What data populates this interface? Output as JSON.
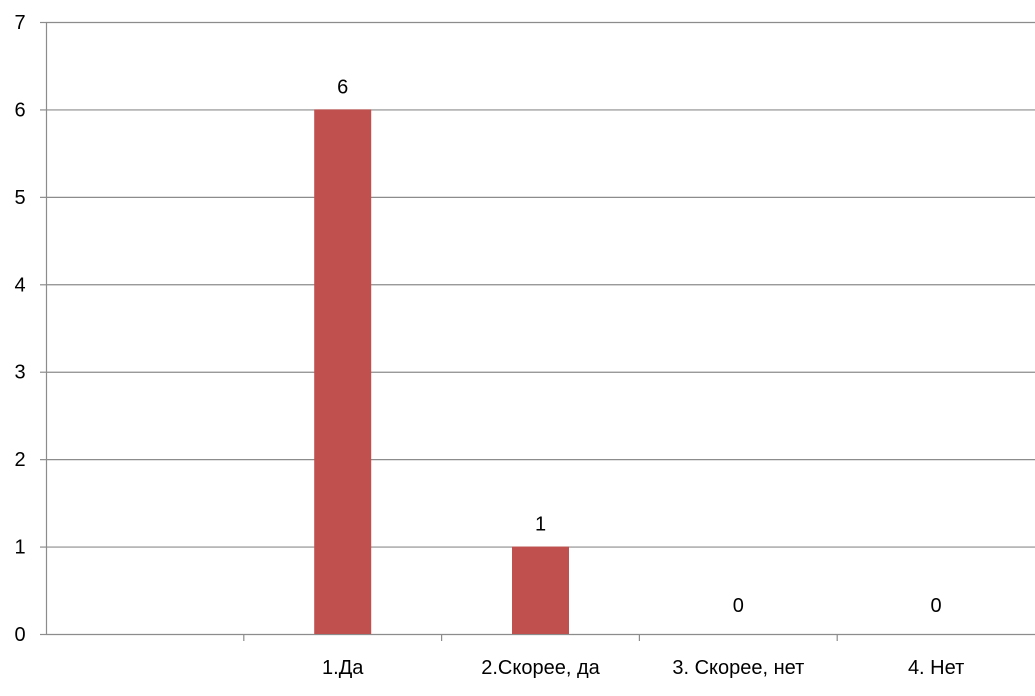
{
  "chart_data": {
    "type": "bar",
    "categories": [
      "",
      "1.Да",
      "2.Скорее, да",
      "3. Скорее, нет",
      "4. Нет"
    ],
    "values": [
      null,
      6,
      1,
      0,
      0
    ],
    "data_labels": [
      "",
      "6",
      "1",
      "0",
      "0"
    ],
    "ylim": [
      0,
      7
    ],
    "y_ticks": [
      "0",
      "1",
      "2",
      "3",
      "4",
      "5",
      "6",
      "7"
    ],
    "title": "",
    "xlabel": "",
    "ylabel": "",
    "grid": true,
    "legend": "none",
    "bar_color": "#c0504d",
    "grid_color": "#8c8c8c",
    "axis_color": "#8c8c8c"
  }
}
